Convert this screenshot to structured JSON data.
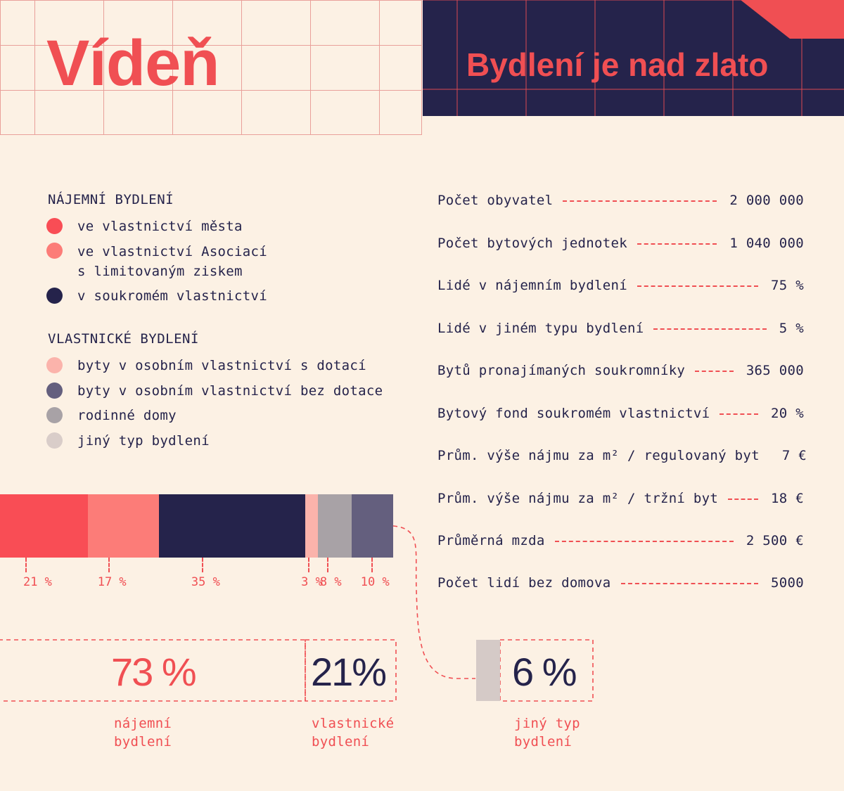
{
  "header": {
    "city": "Vídeň",
    "banner_title": "Bydlení je nad zlato"
  },
  "colors": {
    "background": "#fcf1e4",
    "accent_red": "#f04f53",
    "navy": "#25234b",
    "grid_line": "#e9a09a"
  },
  "legend": {
    "rental_heading": "NÁJEMNÍ BYDLENÍ",
    "rental_items": [
      {
        "label": "ve vlastnictví města",
        "color": "#f94d55"
      },
      {
        "label": "ve vlastnictví Asociací\ns limitovaným ziskem",
        "color": "#fc7c78"
      },
      {
        "label": "v soukromém vlastnictví",
        "color": "#25234b"
      }
    ],
    "owner_heading": "VLASTNICKÉ BYDLENÍ",
    "owner_items": [
      {
        "label": "byty v osobním vlastnictví s dotací",
        "color": "#fbb3ab"
      },
      {
        "label": "byty v osobním vlastnictví bez dotace",
        "color": "#645f7e"
      },
      {
        "label": "rodinné domy",
        "color": "#a8a2a6"
      },
      {
        "label": "jiný typ bydlení",
        "color": "#d9cdc9"
      }
    ]
  },
  "stats": [
    {
      "label": "Počet obyvatel",
      "value": "2 000 000"
    },
    {
      "label": "Počet bytových jednotek",
      "value": "1 040 000"
    },
    {
      "label": "Lidé v nájemním bydlení",
      "value": "75 %"
    },
    {
      "label": "Lidé v jiném typu bydlení",
      "value": "5 %"
    },
    {
      "label": "Bytů pronajímaných soukromníky",
      "value": "365 000"
    },
    {
      "label": "Bytový fond soukromém vlastnictví",
      "value": "20 %"
    },
    {
      "label": "Prům. výše nájmu za m² / regulovaný byt",
      "value": "7 €"
    },
    {
      "label": "Prům. výše nájmu za m² / tržní byt",
      "value": "18 €"
    },
    {
      "label": "Průměrná mzda",
      "value": "2 500 €"
    },
    {
      "label": "Počet lidí bez domova",
      "value": "5000"
    }
  ],
  "chart_data": {
    "type": "bar",
    "orientation": "horizontal-stacked",
    "categories": [
      "ve vlastnictví města",
      "ve vlastnictví Asociací s limitovaným ziskem",
      "v soukromém vlastnictví",
      "byty v osobním vlastnictví s dotací",
      "rodinné domy",
      "byty v osobním vlastnictví bez dotace"
    ],
    "values": [
      21,
      17,
      35,
      3,
      8,
      10
    ],
    "labels": [
      "21 %",
      "17 %",
      "35 %",
      "3 %",
      "8 %",
      "10 %"
    ],
    "colors": [
      "#f94d55",
      "#fc7c78",
      "#25234b",
      "#fbb3ab",
      "#a8a2a6",
      "#645f7e"
    ]
  },
  "summary": [
    {
      "value": "73 %",
      "caption": "nájemní\nbydlení"
    },
    {
      "value": "21%",
      "caption": "vlastnické\nbydlení"
    },
    {
      "value": "6 %",
      "caption": "jiný typ\nbydlení"
    }
  ]
}
